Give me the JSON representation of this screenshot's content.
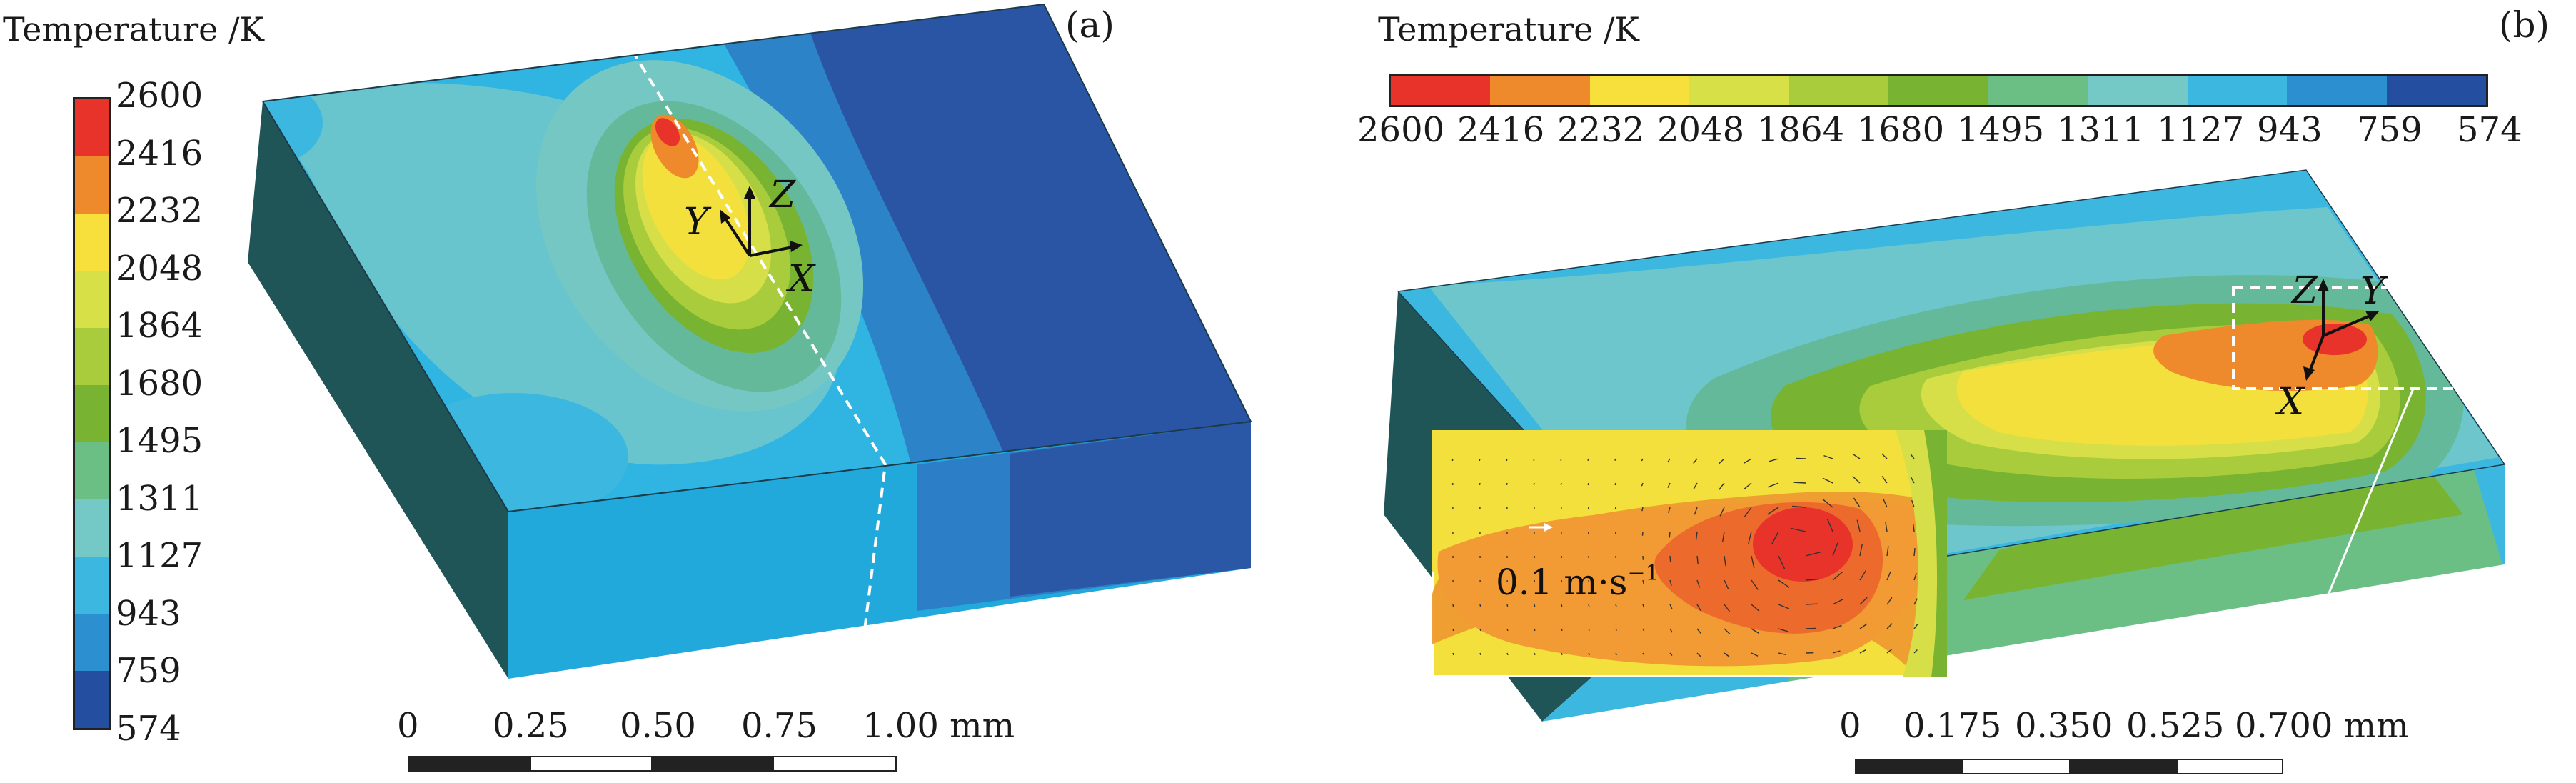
{
  "panel_a": {
    "tag": "(a)",
    "legend_title": "Temperature /K",
    "legend_values": [
      "2600",
      "2416",
      "2232",
      "2048",
      "1864",
      "1680",
      "1495",
      "1311",
      "1127",
      "943",
      "759",
      "574"
    ],
    "legend_colors": [
      "#e8332a",
      "#ee8a2c",
      "#f7e03c",
      "#d8e048",
      "#a8cc3c",
      "#78b431",
      "#6cbf84",
      "#74c8c6",
      "#3cb8e0",
      "#2c8fd0",
      "#244fa0"
    ],
    "axes": {
      "z": "Z",
      "y": "Y",
      "x": "X"
    },
    "scale_labels": [
      "0",
      "0.25",
      "0.50",
      "0.75",
      "1.00 mm"
    ]
  },
  "panel_b": {
    "tag": "(b)",
    "legend_title": "Temperature /K",
    "legend_values": [
      "2600",
      "2416",
      "2232",
      "2048",
      "1864",
      "1680",
      "1495",
      "1311",
      "1127",
      "943",
      "759",
      "574"
    ],
    "legend_colors": [
      "#e8332a",
      "#ee8a2c",
      "#f7e03c",
      "#d8e048",
      "#a8cc3c",
      "#78b431",
      "#6cbf84",
      "#74c8c6",
      "#3cb8e0",
      "#2c8fd0",
      "#244fa0"
    ],
    "axes": {
      "z": "Z",
      "y": "Y",
      "x": "X"
    },
    "velocity_value": "0.1 m",
    "velocity_dot": "·",
    "velocity_unit": "s",
    "velocity_exp": "−1",
    "scale_labels": [
      "0",
      "0.175",
      "0.350",
      "0.525",
      "0.700 mm"
    ]
  }
}
